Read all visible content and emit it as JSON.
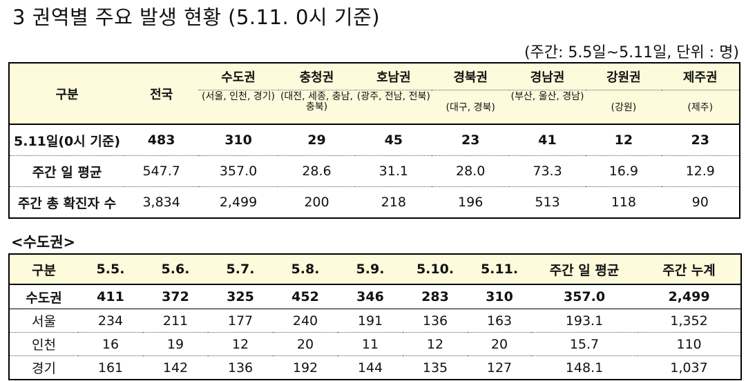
{
  "title": "3  권역별 주요 발생 현황 (5.11. 0시 기준)",
  "unit_note": "(주간: 5.5일~5.11일, 단위 : 명)",
  "regional_table": {
    "headers": {
      "category": "구분",
      "national": "전국",
      "regions": [
        {
          "name": "수도권",
          "detail": "(서울, 인천, 경기)"
        },
        {
          "name": "충청권",
          "detail": "(대전, 세종, 충남, 충북)"
        },
        {
          "name": "호남권",
          "detail": "(광주, 전남, 전북)"
        },
        {
          "name": "경북권",
          "detail": "(대구, 경북)"
        },
        {
          "name": "경남권",
          "detail": "(부산, 울산, 경남)"
        },
        {
          "name": "강원권",
          "detail": "(강원)"
        },
        {
          "name": "제주권",
          "detail": "(제주)"
        }
      ]
    },
    "rows": [
      {
        "label": "5.11일(0시 기준)",
        "values": [
          "483",
          "310",
          "29",
          "45",
          "23",
          "41",
          "12",
          "23"
        ]
      },
      {
        "label": "주간 일 평균",
        "values": [
          "547.7",
          "357.0",
          "28.6",
          "31.1",
          "28.0",
          "73.3",
          "16.9",
          "12.9"
        ]
      },
      {
        "label": "주간 총 확진자 수",
        "values": [
          "3,834",
          "2,499",
          "200",
          "218",
          "196",
          "513",
          "118",
          "90"
        ]
      }
    ]
  },
  "capital_section": {
    "title": "<수도권>",
    "headers": [
      "구분",
      "5.5.",
      "5.6.",
      "5.7.",
      "5.8.",
      "5.9.",
      "5.10.",
      "5.11.",
      "주간 일 평균",
      "주간 누계"
    ],
    "rows": [
      {
        "label": "수도권",
        "values": [
          "411",
          "372",
          "325",
          "452",
          "346",
          "283",
          "310",
          "357.0",
          "2,499"
        ]
      },
      {
        "label": "서울",
        "values": [
          "234",
          "211",
          "177",
          "240",
          "191",
          "136",
          "163",
          "193.1",
          "1,352"
        ]
      },
      {
        "label": "인천",
        "values": [
          "16",
          "19",
          "12",
          "20",
          "11",
          "12",
          "20",
          "15.7",
          "110"
        ]
      },
      {
        "label": "경기",
        "values": [
          "161",
          "142",
          "136",
          "192",
          "144",
          "135",
          "127",
          "148.1",
          "1,037"
        ]
      }
    ]
  }
}
